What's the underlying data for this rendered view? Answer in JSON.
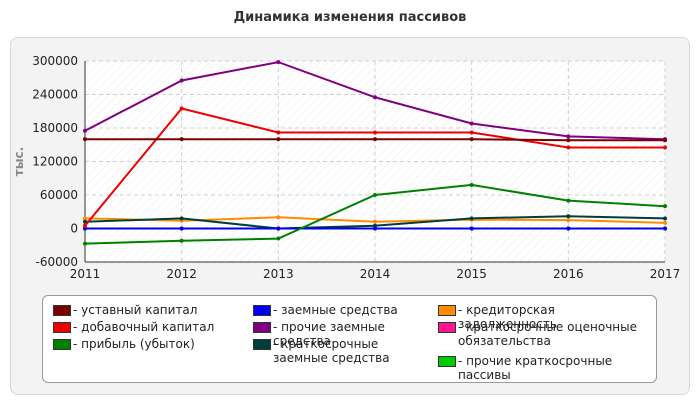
{
  "chart_data": {
    "type": "line",
    "title": "Динамика изменения пассивов",
    "ylabel": "тыс.",
    "xlabel": "",
    "x": [
      "2011",
      "2012",
      "2013",
      "2014",
      "2015",
      "2016",
      "2017"
    ],
    "ylim": [
      -60000,
      300000
    ],
    "yticks": [
      -60000,
      0,
      60000,
      120000,
      180000,
      240000,
      300000
    ],
    "grid": true,
    "legend_position": "bottom",
    "series": [
      {
        "name": "уставный капитал",
        "color": "#7b0000",
        "values": [
          160000,
          160000,
          160000,
          160000,
          160000,
          158000,
          158000
        ]
      },
      {
        "name": "добавочный капитал",
        "color": "#ee0000",
        "values": [
          5000,
          215000,
          172000,
          172000,
          172000,
          145000,
          145000
        ]
      },
      {
        "name": "прибыль (убыток)",
        "color": "#008000",
        "values": [
          -27000,
          -22000,
          -18000,
          60000,
          78000,
          50000,
          40000
        ]
      },
      {
        "name": "заемные средства",
        "color": "#0000ee",
        "values": [
          0,
          0,
          0,
          0,
          0,
          0,
          0
        ]
      },
      {
        "name": "прочие заемные средства",
        "color": "#800080",
        "values": [
          175000,
          265000,
          298000,
          235000,
          188000,
          165000,
          160000
        ]
      },
      {
        "name": "краткосрочные заемные средства",
        "color": "#003d3d",
        "values": [
          12000,
          18000,
          0,
          5000,
          18000,
          22000,
          18000
        ]
      },
      {
        "name": "кредиторская задолженность",
        "color": "#ff8c00",
        "values": [
          18000,
          14000,
          20000,
          12000,
          16000,
          15000,
          10000
        ]
      },
      {
        "name": "краткосрочные оценочные обязательства",
        "color": "#ff1493",
        "values": [
          0,
          0,
          0,
          0,
          0,
          0,
          0
        ]
      },
      {
        "name": "прочие краткосрочные пассивы",
        "color": "#00cc00",
        "values": [
          0,
          0,
          0,
          0,
          0,
          0,
          0
        ]
      }
    ]
  }
}
